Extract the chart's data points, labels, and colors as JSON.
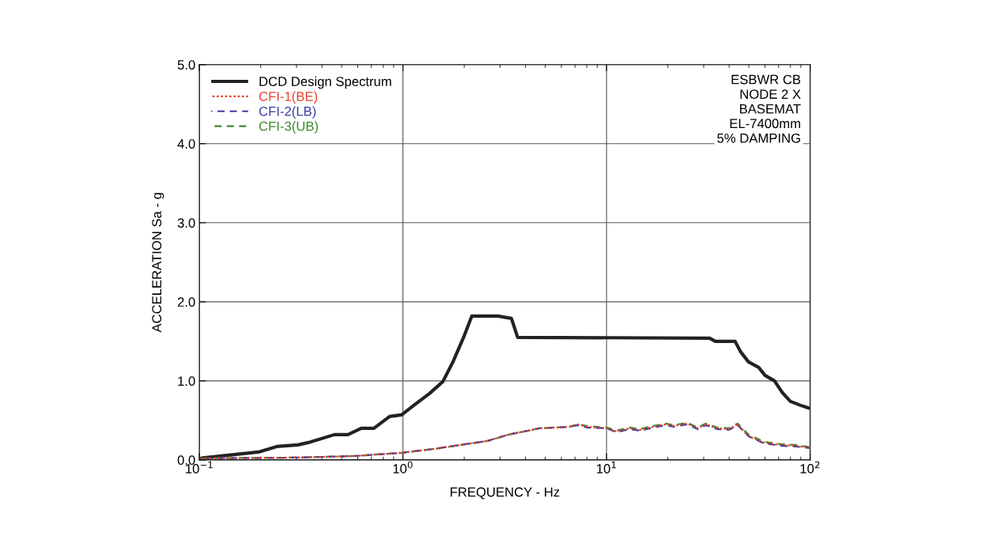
{
  "chart_data": {
    "type": "line",
    "xlabel": "FREQUENCY - Hz",
    "ylabel": "ACCELERATION Sa - g",
    "log": "x",
    "grid": true,
    "legend": "top left",
    "xlim": [
      0.1,
      100
    ],
    "xticks": [
      {
        "value": 0.1,
        "label": "10$^{−1}$"
      },
      {
        "value": 1,
        "label": "10$^{0}$"
      },
      {
        "value": 10,
        "label": "10$^{1}$"
      },
      {
        "value": 100,
        "label": "10$^{2}$"
      }
    ],
    "ylim": [
      0,
      5
    ],
    "yticks": [
      {
        "value": 0,
        "label": "0.0"
      },
      {
        "value": 1,
        "label": "1.0"
      },
      {
        "value": 2,
        "label": "2.0"
      },
      {
        "value": 3,
        "label": "3.0"
      },
      {
        "value": 4,
        "label": "4.0"
      },
      {
        "value": 5,
        "label": "5.0"
      }
    ],
    "annotations": [
      "ESBWR CB\nNODE 2 X\nBASEMAT\nEL-7400mm\n5% DAMPING"
    ],
    "series": [
      {
        "name": "DCD Design Spectrum",
        "color": "#222222",
        "line_style": "solid",
        "x": [
          0.1,
          0.195,
          0.24,
          0.305,
          0.343,
          0.461,
          0.537,
          0.624,
          0.72,
          0.861,
          0.985,
          1.13,
          1.35,
          1.57,
          1.76,
          2.0,
          2.18,
          2.93,
          3.41,
          3.66,
          32.1,
          34.2,
          42.8,
          45.5,
          49.8,
          55.9,
          60.0,
          66.8,
          73.1,
          80.0,
          89.8,
          100
        ],
        "values": [
          0.02,
          0.1,
          0.17,
          0.19,
          0.22,
          0.32,
          0.32,
          0.4,
          0.4,
          0.55,
          0.57,
          0.69,
          0.84,
          0.99,
          1.24,
          1.57,
          1.82,
          1.82,
          1.79,
          1.55,
          1.54,
          1.5,
          1.5,
          1.37,
          1.24,
          1.17,
          1.07,
          1.0,
          0.85,
          0.74,
          0.69,
          0.65
        ]
      },
      {
        "name": "CFI-1(BE)",
        "color": "#e8402a",
        "line_style": "dotted",
        "x": [
          0.1,
          0.305,
          0.586,
          0.985,
          1.43,
          1.92,
          2.6,
          3.3,
          4.69,
          6.6,
          7.2,
          8.0,
          10.0,
          11.2,
          13.0,
          14.6,
          17.0,
          19.5,
          21.3,
          24.9,
          28.0,
          30.7,
          34.9,
          40.0,
          44.0,
          49.8,
          59.3,
          71.1,
          85,
          100
        ],
        "values": [
          0.02,
          0.03,
          0.05,
          0.09,
          0.14,
          0.19,
          0.24,
          0.32,
          0.4,
          0.42,
          0.45,
          0.42,
          0.4,
          0.36,
          0.4,
          0.38,
          0.42,
          0.45,
          0.43,
          0.46,
          0.4,
          0.45,
          0.4,
          0.39,
          0.45,
          0.3,
          0.22,
          0.19,
          0.18,
          0.15
        ]
      },
      {
        "name": "CFI-2(LB)",
        "color": "#3a3aa8",
        "line_style": "dashed",
        "x": [
          0.1,
          0.305,
          0.586,
          0.985,
          1.43,
          1.92,
          2.6,
          3.3,
          4.69,
          6.6,
          7.2,
          8.0,
          10.0,
          11.2,
          13.0,
          14.6,
          17.0,
          19.5,
          21.3,
          24.9,
          28.0,
          30.7,
          34.9,
          40.0,
          44.0,
          49.8,
          59.3,
          71.1,
          85,
          100
        ],
        "values": [
          0.02,
          0.03,
          0.05,
          0.09,
          0.14,
          0.19,
          0.24,
          0.32,
          0.4,
          0.42,
          0.44,
          0.41,
          0.4,
          0.35,
          0.39,
          0.37,
          0.41,
          0.44,
          0.42,
          0.45,
          0.39,
          0.44,
          0.39,
          0.38,
          0.44,
          0.3,
          0.21,
          0.18,
          0.17,
          0.15
        ]
      },
      {
        "name": "CFI-3(UB)",
        "color": "#3a8a2a",
        "line_style": "dashed",
        "x": [
          0.1,
          0.305,
          0.586,
          0.985,
          1.43,
          1.92,
          2.6,
          3.3,
          4.69,
          6.6,
          7.2,
          8.0,
          10.0,
          11.2,
          13.0,
          14.6,
          17.0,
          19.5,
          21.3,
          24.9,
          28.0,
          30.7,
          34.9,
          40.0,
          44.0,
          49.8,
          59.3,
          71.1,
          85,
          100
        ],
        "values": [
          0.02,
          0.03,
          0.05,
          0.09,
          0.14,
          0.19,
          0.24,
          0.32,
          0.4,
          0.42,
          0.45,
          0.43,
          0.41,
          0.37,
          0.41,
          0.39,
          0.43,
          0.46,
          0.44,
          0.47,
          0.41,
          0.46,
          0.41,
          0.4,
          0.46,
          0.32,
          0.23,
          0.2,
          0.19,
          0.16
        ]
      }
    ]
  }
}
